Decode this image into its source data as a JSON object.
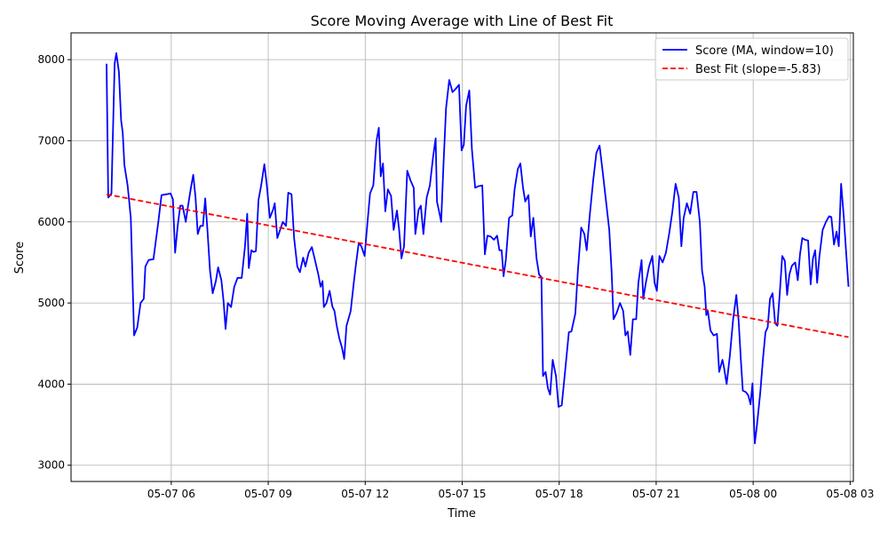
{
  "chart_data": {
    "type": "line",
    "title": "Score Moving Average with Line of Best Fit",
    "xlabel": "Time",
    "ylabel": "Score",
    "x_ticks": [
      {
        "label": "05-07 06",
        "hours": 6
      },
      {
        "label": "05-07 09",
        "hours": 9
      },
      {
        "label": "05-07 12",
        "hours": 12
      },
      {
        "label": "05-07 15",
        "hours": 15
      },
      {
        "label": "05-07 18",
        "hours": 18
      },
      {
        "label": "05-07 21",
        "hours": 21
      },
      {
        "label": "05-08 00",
        "hours": 24
      },
      {
        "label": "05-08 03",
        "hours": 27
      }
    ],
    "xlim_hours": [
      2.9,
      27.1
    ],
    "ylim": [
      2800,
      8330
    ],
    "y_ticks": [
      3000,
      4000,
      5000,
      6000,
      7000,
      8000
    ],
    "grid": true,
    "legend_position": "top-right",
    "series": [
      {
        "name": "Score (MA, window=10)",
        "color": "#0000ff",
        "style": "solid",
        "points": [
          [
            4.0,
            7950
          ],
          [
            4.05,
            6300
          ],
          [
            4.15,
            6350
          ],
          [
            4.25,
            7950
          ],
          [
            4.3,
            8080
          ],
          [
            4.38,
            7850
          ],
          [
            4.45,
            7250
          ],
          [
            4.5,
            7100
          ],
          [
            4.55,
            6700
          ],
          [
            4.65,
            6450
          ],
          [
            4.75,
            6050
          ],
          [
            4.85,
            4600
          ],
          [
            4.95,
            4700
          ],
          [
            5.05,
            5000
          ],
          [
            5.15,
            5050
          ],
          [
            5.2,
            5450
          ],
          [
            5.3,
            5530
          ],
          [
            5.45,
            5540
          ],
          [
            5.6,
            6000
          ],
          [
            5.7,
            6330
          ],
          [
            5.85,
            6340
          ],
          [
            5.98,
            6350
          ],
          [
            6.05,
            6280
          ],
          [
            6.12,
            5620
          ],
          [
            6.2,
            5950
          ],
          [
            6.28,
            6200
          ],
          [
            6.35,
            6200
          ],
          [
            6.45,
            6000
          ],
          [
            6.52,
            6200
          ],
          [
            6.6,
            6400
          ],
          [
            6.68,
            6580
          ],
          [
            6.75,
            6300
          ],
          [
            6.82,
            5850
          ],
          [
            6.9,
            5950
          ],
          [
            6.98,
            5950
          ],
          [
            7.05,
            6290
          ],
          [
            7.12,
            5900
          ],
          [
            7.2,
            5400
          ],
          [
            7.28,
            5120
          ],
          [
            7.38,
            5270
          ],
          [
            7.45,
            5440
          ],
          [
            7.55,
            5280
          ],
          [
            7.62,
            5020
          ],
          [
            7.68,
            4680
          ],
          [
            7.75,
            5000
          ],
          [
            7.85,
            4950
          ],
          [
            7.95,
            5200
          ],
          [
            8.05,
            5310
          ],
          [
            8.18,
            5310
          ],
          [
            8.28,
            5700
          ],
          [
            8.35,
            6100
          ],
          [
            8.4,
            5430
          ],
          [
            8.48,
            5650
          ],
          [
            8.55,
            5630
          ],
          [
            8.62,
            5640
          ],
          [
            8.7,
            6270
          ],
          [
            8.78,
            6450
          ],
          [
            8.88,
            6710
          ],
          [
            8.95,
            6480
          ],
          [
            9.05,
            6050
          ],
          [
            9.15,
            6150
          ],
          [
            9.2,
            6230
          ],
          [
            9.28,
            5800
          ],
          [
            9.35,
            5880
          ],
          [
            9.45,
            6000
          ],
          [
            9.55,
            5950
          ],
          [
            9.62,
            6360
          ],
          [
            9.72,
            6340
          ],
          [
            9.8,
            5800
          ],
          [
            9.9,
            5450
          ],
          [
            9.98,
            5380
          ],
          [
            10.08,
            5560
          ],
          [
            10.15,
            5450
          ],
          [
            10.25,
            5620
          ],
          [
            10.35,
            5690
          ],
          [
            10.42,
            5570
          ],
          [
            10.55,
            5350
          ],
          [
            10.62,
            5200
          ],
          [
            10.68,
            5270
          ],
          [
            10.72,
            4950
          ],
          [
            10.8,
            5000
          ],
          [
            10.9,
            5150
          ],
          [
            10.98,
            4960
          ],
          [
            11.05,
            4900
          ],
          [
            11.12,
            4720
          ],
          [
            11.2,
            4560
          ],
          [
            11.28,
            4450
          ],
          [
            11.35,
            4310
          ],
          [
            11.42,
            4720
          ],
          [
            11.55,
            4900
          ],
          [
            11.65,
            5260
          ],
          [
            11.72,
            5500
          ],
          [
            11.8,
            5740
          ],
          [
            11.88,
            5700
          ],
          [
            11.98,
            5580
          ],
          [
            12.05,
            5900
          ],
          [
            12.15,
            6350
          ],
          [
            12.25,
            6450
          ],
          [
            12.35,
            7000
          ],
          [
            12.42,
            7160
          ],
          [
            12.48,
            6560
          ],
          [
            12.55,
            6720
          ],
          [
            12.62,
            6130
          ],
          [
            12.7,
            6400
          ],
          [
            12.8,
            6320
          ],
          [
            12.88,
            5900
          ],
          [
            12.98,
            6140
          ],
          [
            13.05,
            5900
          ],
          [
            13.12,
            5550
          ],
          [
            13.2,
            5700
          ],
          [
            13.3,
            6630
          ],
          [
            13.4,
            6510
          ],
          [
            13.5,
            6420
          ],
          [
            13.55,
            5850
          ],
          [
            13.65,
            6150
          ],
          [
            13.72,
            6200
          ],
          [
            13.8,
            5850
          ],
          [
            13.9,
            6300
          ],
          [
            14.0,
            6450
          ],
          [
            14.1,
            6800
          ],
          [
            14.18,
            7030
          ],
          [
            14.22,
            6250
          ],
          [
            14.3,
            6100
          ],
          [
            14.35,
            6000
          ],
          [
            14.42,
            6700
          ],
          [
            14.5,
            7400
          ],
          [
            14.6,
            7750
          ],
          [
            14.7,
            7600
          ],
          [
            14.8,
            7640
          ],
          [
            14.9,
            7690
          ],
          [
            14.98,
            6880
          ],
          [
            15.05,
            6950
          ],
          [
            15.12,
            7430
          ],
          [
            15.22,
            7620
          ],
          [
            15.3,
            6900
          ],
          [
            15.4,
            6420
          ],
          [
            15.5,
            6440
          ],
          [
            15.62,
            6450
          ],
          [
            15.7,
            5600
          ],
          [
            15.78,
            5830
          ],
          [
            15.88,
            5820
          ],
          [
            15.98,
            5780
          ],
          [
            16.08,
            5830
          ],
          [
            16.15,
            5650
          ],
          [
            16.22,
            5650
          ],
          [
            16.28,
            5330
          ],
          [
            16.35,
            5530
          ],
          [
            16.45,
            6050
          ],
          [
            16.55,
            6080
          ],
          [
            16.62,
            6400
          ],
          [
            16.72,
            6650
          ],
          [
            16.8,
            6720
          ],
          [
            16.88,
            6430
          ],
          [
            16.95,
            6250
          ],
          [
            17.05,
            6330
          ],
          [
            17.12,
            5820
          ],
          [
            17.2,
            6050
          ],
          [
            17.3,
            5550
          ],
          [
            17.38,
            5350
          ],
          [
            17.45,
            5320
          ],
          [
            17.5,
            4100
          ],
          [
            17.58,
            4150
          ],
          [
            17.65,
            3950
          ],
          [
            17.72,
            3870
          ],
          [
            17.8,
            4300
          ],
          [
            17.9,
            4100
          ],
          [
            17.98,
            3720
          ],
          [
            18.08,
            3740
          ],
          [
            18.18,
            4150
          ],
          [
            18.3,
            4640
          ],
          [
            18.38,
            4650
          ],
          [
            18.5,
            4870
          ],
          [
            18.58,
            5400
          ],
          [
            18.68,
            5930
          ],
          [
            18.78,
            5850
          ],
          [
            18.85,
            5650
          ],
          [
            18.95,
            6100
          ],
          [
            19.05,
            6500
          ],
          [
            19.15,
            6850
          ],
          [
            19.25,
            6940
          ],
          [
            19.35,
            6600
          ],
          [
            19.45,
            6250
          ],
          [
            19.55,
            5900
          ],
          [
            19.62,
            5400
          ],
          [
            19.68,
            4800
          ],
          [
            19.78,
            4880
          ],
          [
            19.88,
            5000
          ],
          [
            19.98,
            4900
          ],
          [
            20.05,
            4600
          ],
          [
            20.12,
            4650
          ],
          [
            20.2,
            4360
          ],
          [
            20.28,
            4800
          ],
          [
            20.38,
            4800
          ],
          [
            20.45,
            5250
          ],
          [
            20.55,
            5530
          ],
          [
            20.6,
            5050
          ],
          [
            20.68,
            5250
          ],
          [
            20.78,
            5450
          ],
          [
            20.88,
            5580
          ],
          [
            20.95,
            5250
          ],
          [
            21.02,
            5150
          ],
          [
            21.1,
            5580
          ],
          [
            21.2,
            5500
          ],
          [
            21.3,
            5620
          ],
          [
            21.4,
            5850
          ],
          [
            21.5,
            6120
          ],
          [
            21.6,
            6470
          ],
          [
            21.7,
            6300
          ],
          [
            21.78,
            5700
          ],
          [
            21.85,
            6050
          ],
          [
            21.95,
            6230
          ],
          [
            22.05,
            6100
          ],
          [
            22.15,
            6370
          ],
          [
            22.25,
            6370
          ],
          [
            22.35,
            6000
          ],
          [
            22.42,
            5400
          ],
          [
            22.5,
            5200
          ],
          [
            22.55,
            4850
          ],
          [
            22.6,
            4900
          ],
          [
            22.68,
            4660
          ],
          [
            22.78,
            4600
          ],
          [
            22.88,
            4620
          ],
          [
            22.95,
            4150
          ],
          [
            23.05,
            4300
          ],
          [
            23.1,
            4200
          ],
          [
            23.18,
            4000
          ],
          [
            23.28,
            4350
          ],
          [
            23.38,
            4800
          ],
          [
            23.48,
            5100
          ],
          [
            23.55,
            4780
          ],
          [
            23.62,
            4300
          ],
          [
            23.68,
            3920
          ],
          [
            23.78,
            3900
          ],
          [
            23.85,
            3860
          ],
          [
            23.92,
            3750
          ],
          [
            23.98,
            4010
          ],
          [
            24.05,
            3270
          ],
          [
            24.12,
            3500
          ],
          [
            24.22,
            3900
          ],
          [
            24.3,
            4300
          ],
          [
            24.38,
            4640
          ],
          [
            24.45,
            4700
          ],
          [
            24.52,
            5050
          ],
          [
            24.6,
            5120
          ],
          [
            24.68,
            4750
          ],
          [
            24.75,
            4720
          ],
          [
            24.82,
            5100
          ],
          [
            24.9,
            5580
          ],
          [
            24.98,
            5520
          ],
          [
            25.05,
            5100
          ],
          [
            25.12,
            5350
          ],
          [
            25.2,
            5460
          ],
          [
            25.3,
            5500
          ],
          [
            25.38,
            5280
          ],
          [
            25.45,
            5600
          ],
          [
            25.52,
            5800
          ],
          [
            25.6,
            5780
          ],
          [
            25.7,
            5770
          ],
          [
            25.78,
            5230
          ],
          [
            25.85,
            5550
          ],
          [
            25.92,
            5650
          ],
          [
            25.98,
            5250
          ],
          [
            26.05,
            5580
          ],
          [
            26.15,
            5900
          ],
          [
            26.25,
            6000
          ],
          [
            26.35,
            6070
          ],
          [
            26.42,
            6060
          ],
          [
            26.5,
            5720
          ],
          [
            26.58,
            5880
          ],
          [
            26.65,
            5700
          ],
          [
            26.72,
            6470
          ],
          [
            26.8,
            6080
          ],
          [
            26.88,
            5600
          ],
          [
            26.95,
            5200
          ]
        ]
      },
      {
        "name": "Best Fit (slope=-5.83)",
        "color": "#ff0000",
        "style": "dashed",
        "points": [
          [
            4.0,
            6340
          ],
          [
            26.95,
            4580
          ]
        ]
      }
    ]
  }
}
